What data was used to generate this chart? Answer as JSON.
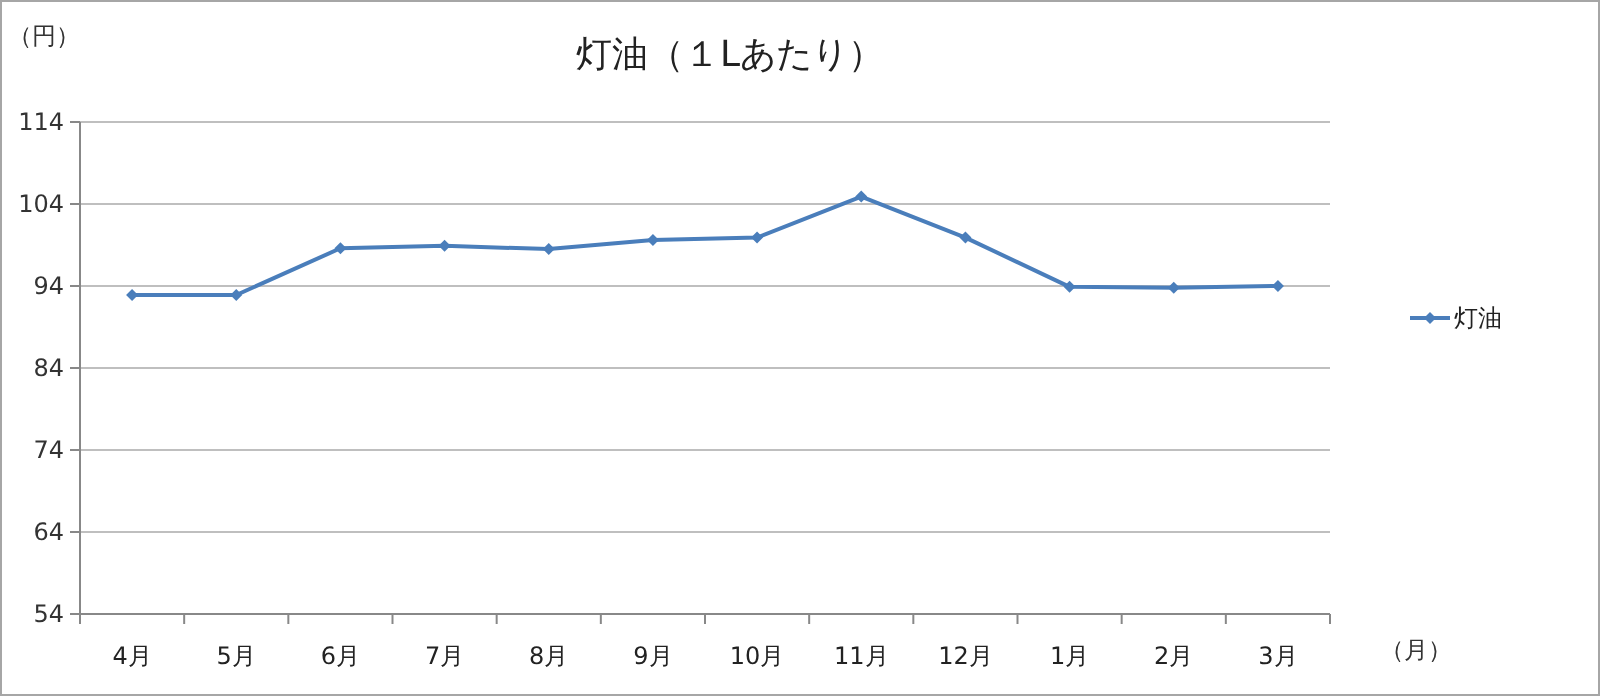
{
  "chart_data": {
    "type": "line",
    "title": "灯油（１Lあたり）",
    "ylabel": "（円）",
    "xlabel": "（月）",
    "categories": [
      "4月",
      "5月",
      "6月",
      "7月",
      "8月",
      "9月",
      "10月",
      "11月",
      "12月",
      "1月",
      "2月",
      "3月"
    ],
    "series": [
      {
        "name": "灯油",
        "color": "#4a7ebb",
        "values": [
          92.9,
          92.9,
          98.6,
          98.9,
          98.5,
          99.6,
          99.9,
          104.9,
          99.9,
          93.9,
          93.8,
          94.0
        ]
      }
    ],
    "ylim": [
      54,
      114
    ],
    "yticks": [
      54,
      64,
      74,
      84,
      94,
      104,
      114
    ],
    "grid": "y",
    "legend": "right",
    "marker": "diamond",
    "line_style": "solid"
  }
}
